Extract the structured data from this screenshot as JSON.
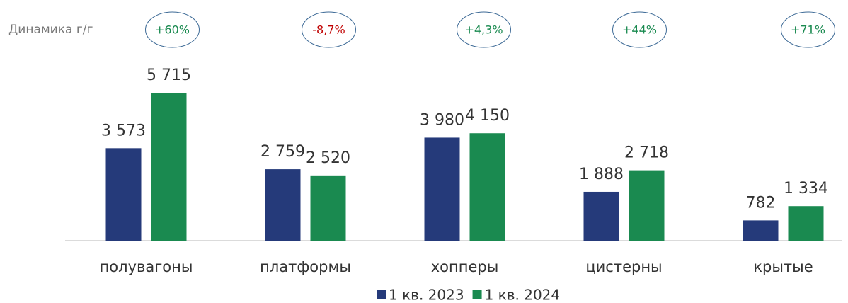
{
  "chart_data": {
    "type": "bar",
    "categories": [
      "полувагоны",
      "платформы",
      "хопперы",
      "цистерны",
      "крытые"
    ],
    "series": [
      {
        "name": "1 кв. 2023",
        "color": "#253a7a",
        "values": [
          3573,
          2759,
          3980,
          1888,
          782
        ],
        "value_labels": [
          "3 573",
          "2 759",
          "3 980",
          "1 888",
          "782"
        ]
      },
      {
        "name": "1 кв. 2024",
        "color": "#1a8a50",
        "values": [
          5715,
          2520,
          4150,
          2718,
          1334
        ],
        "value_labels": [
          "5 715",
          "2 520",
          "4 150",
          "2 718",
          "1 334"
        ]
      }
    ],
    "annotations": {
      "label": "Динамика г/г",
      "items": [
        {
          "text": "+60%",
          "color": "#1a8a50"
        },
        {
          "text": "-8,7%",
          "color": "#c00000"
        },
        {
          "text": "+4,3%",
          "color": "#1a8a50"
        },
        {
          "text": "+44%",
          "color": "#1a8a50"
        },
        {
          "text": "+71%",
          "color": "#1a8a50"
        }
      ]
    },
    "legend": "bottom"
  }
}
